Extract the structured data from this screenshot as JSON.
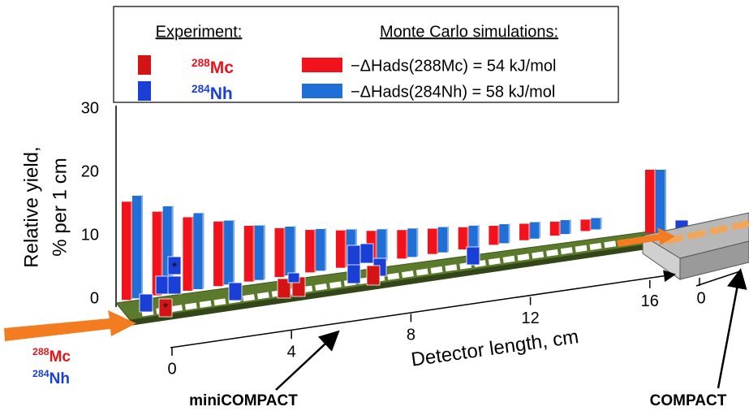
{
  "chart_data": [
    {
      "type": "bar3d",
      "label": "miniCOMPACT",
      "y_label": [
        "Relative yield,",
        "% per 1 cm"
      ],
      "x_label": "Detector length, cm",
      "legend": {
        "experiment_title": "Experiment:",
        "simulation_title": "Monte Carlo simulations:",
        "isotopes": [
          {
            "mass": "288",
            "symbol": "Mc",
            "color": "#e8141c"
          },
          {
            "mass": "284",
            "symbol": "Nh",
            "color": "#1a3fd6"
          }
        ]
      },
      "beam": [
        {
          "mass": "288",
          "symbol": "Mc",
          "color": "#e8141c"
        },
        {
          "mass": "284",
          "symbol": "Nh",
          "color": "#1a3fd6"
        }
      ],
      "x": [
        0.5,
        1.5,
        2.5,
        3.5,
        4.5,
        5.5,
        6.5,
        7.5,
        8.5,
        9.5,
        10.5,
        11.5,
        12.5,
        13.5,
        14.5,
        15.5
      ],
      "series": [
        {
          "name": "−ΔHads(288Mc) = 54 kJ/mol",
          "color": "#f2121b",
          "values": [
            15.5,
            13.2,
            11.6,
            10.2,
            8.8,
            7.7,
            6.7,
            5.9,
            5.1,
            4.5,
            4.0,
            3.5,
            3.0,
            2.6,
            2.2,
            1.8
          ]
        },
        {
          "name": "−ΔHads(284Nh) = 58 kJ/mol",
          "color": "#1f6fd6",
          "values": [
            16.2,
            13.8,
            12.0,
            10.1,
            8.6,
            7.7,
            6.6,
            5.8,
            5.1,
            4.5,
            4.0,
            3.5,
            3.0,
            2.6,
            2.2,
            1.8
          ]
        }
      ],
      "xlim": [
        0,
        16
      ],
      "xticks": [
        0,
        4,
        8,
        12,
        16
      ],
      "ylim": [
        0,
        30
      ],
      "yticks": [
        0,
        10,
        20,
        30
      ],
      "grid": true
    },
    {
      "type": "bar3d",
      "label": "COMPACT",
      "x": [
        0.5
      ],
      "series": [
        {
          "color": "#f2121b",
          "values": [
            10
          ]
        },
        {
          "color": "#1f6fd6",
          "values": [
            10
          ]
        }
      ],
      "xticks": [
        0
      ]
    }
  ]
}
